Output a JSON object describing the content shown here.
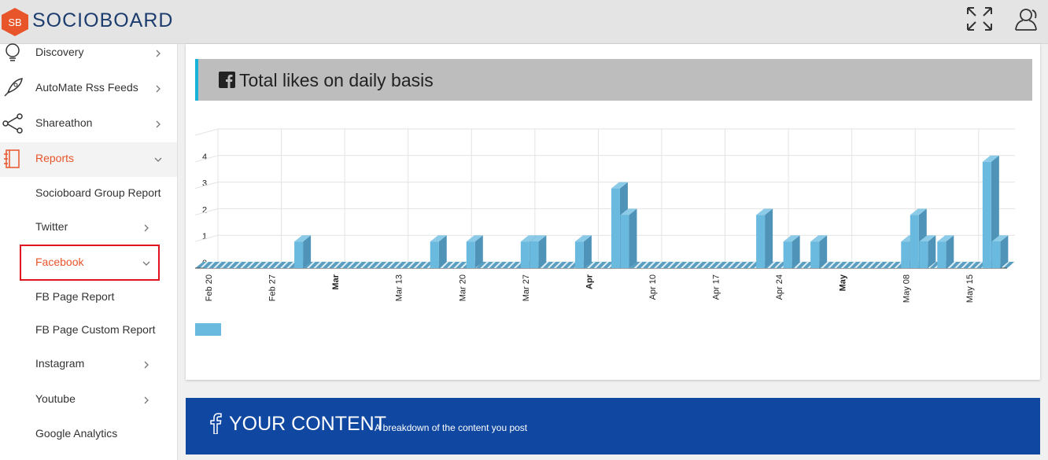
{
  "header": {
    "logo_badge": "SB",
    "logo_text": "SOCIOBOARD"
  },
  "sidebar": {
    "items": [
      {
        "label": "Discovery"
      },
      {
        "label": "AutoMate Rss Feeds"
      },
      {
        "label": "Shareathon"
      },
      {
        "label": "Reports"
      },
      {
        "label": "Socioboard Group Report"
      },
      {
        "label": "Twitter"
      },
      {
        "label": "Facebook"
      },
      {
        "label": "FB Page Report"
      },
      {
        "label": "FB Page Custom Report"
      },
      {
        "label": "Instagram"
      },
      {
        "label": "Youtube"
      },
      {
        "label": "Google Analytics"
      }
    ]
  },
  "banner": {
    "title": "YOUR CONTENT",
    "subtitle": "A breakdown of the content you post"
  },
  "chart_data": {
    "type": "bar3d",
    "title": "Total likes on daily basis",
    "color": "#6ab9de",
    "categories": [
      "Feb 20",
      null,
      null,
      null,
      null,
      null,
      null,
      "Feb 27",
      null,
      null,
      null,
      null,
      null,
      null,
      "Mar",
      null,
      null,
      null,
      null,
      null,
      null,
      "Mar 13",
      null,
      null,
      null,
      null,
      null,
      null,
      "Mar 20",
      null,
      null,
      null,
      null,
      null,
      null,
      "Mar 27",
      null,
      null,
      null,
      null,
      null,
      null,
      "Apr",
      null,
      null,
      null,
      null,
      null,
      null,
      "Apr 10",
      null,
      null,
      null,
      null,
      null,
      null,
      "Apr 17",
      null,
      null,
      null,
      null,
      null,
      null,
      "Apr 24",
      null,
      null,
      null,
      null,
      null,
      null,
      "May",
      null,
      null,
      null,
      null,
      null,
      null,
      "May 08",
      null,
      null,
      null,
      null,
      null,
      null,
      "May 15",
      null,
      null,
      null
    ],
    "values": [
      0,
      0,
      0,
      0,
      0,
      0,
      0,
      0,
      0,
      0,
      1,
      0,
      0,
      0,
      0,
      0,
      0,
      0,
      0,
      0,
      0,
      0,
      0,
      0,
      0,
      1,
      0,
      0,
      0,
      1,
      0,
      0,
      0,
      0,
      0,
      1,
      1,
      0,
      0,
      0,
      0,
      1,
      0,
      0,
      0,
      3,
      2,
      0,
      0,
      0,
      0,
      0,
      0,
      0,
      0,
      0,
      0,
      0,
      0,
      0,
      0,
      2,
      0,
      0,
      1,
      0,
      0,
      1,
      0,
      0,
      0,
      0,
      0,
      0,
      0,
      0,
      0,
      1,
      2,
      1,
      0,
      1,
      0,
      0,
      0,
      0,
      4,
      1
    ],
    "ylim": [
      0,
      5
    ],
    "yticks": [
      0,
      1,
      2,
      3,
      4
    ],
    "grid": true
  }
}
